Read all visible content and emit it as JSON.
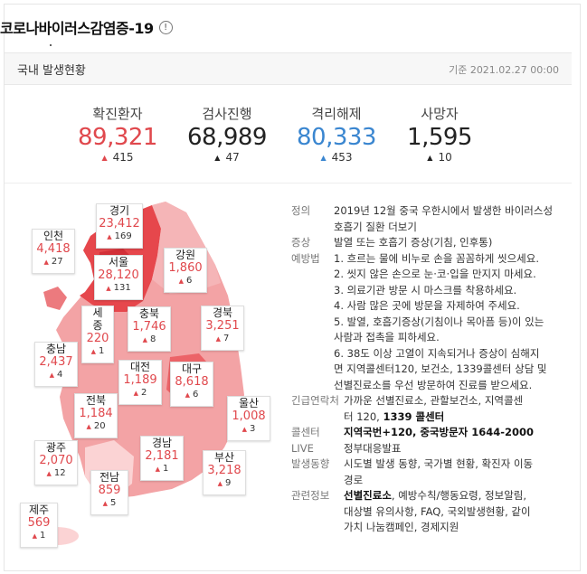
{
  "header": {
    "title": "코로나바이러스감염증-19",
    "info_icon": "info-icon"
  },
  "subheader": {
    "title": "국내 발생현황",
    "date": "기준 2021.02.27 00:00"
  },
  "stats": [
    {
      "label": "확진환자",
      "value": "89,321",
      "delta": "415",
      "color": "#e0484d"
    },
    {
      "label": "검사진행",
      "value": "68,989",
      "delta": "47",
      "color": "#222222"
    },
    {
      "label": "격리해제",
      "value": "80,333",
      "delta": "453",
      "color": "#3a86d0"
    },
    {
      "label": "사망자",
      "value": "1,595",
      "delta": "10",
      "color": "#222222"
    }
  ],
  "regions": {
    "gyeonggi": {
      "name": "경기",
      "count": "23,412",
      "delta": "169"
    },
    "incheon": {
      "name": "인천",
      "count": "4,418",
      "delta": "27"
    },
    "seoul": {
      "name": "서울",
      "count": "28,120",
      "delta": "131"
    },
    "gangwon": {
      "name": "강원",
      "count": "1,860",
      "delta": "6"
    },
    "sejong": {
      "name1": "세",
      "name2": "종",
      "count": "220",
      "delta": "1"
    },
    "chungbuk": {
      "name": "충북",
      "count": "1,746",
      "delta": "8"
    },
    "gyeongbuk": {
      "name": "경북",
      "count": "3,251",
      "delta": "7"
    },
    "chungnam": {
      "name": "충남",
      "count": "2,437",
      "delta": "4"
    },
    "daejeon": {
      "name": "대전",
      "count": "1,189",
      "delta": "2"
    },
    "daegu": {
      "name": "대구",
      "count": "8,618",
      "delta": "6"
    },
    "jeonbuk": {
      "name": "전북",
      "count": "1,184",
      "delta": "20"
    },
    "ulsan": {
      "name": "울산",
      "count": "1,008",
      "delta": "3"
    },
    "gwangju": {
      "name": "광주",
      "count": "2,070",
      "delta": "12"
    },
    "gyeongnam": {
      "name": "경남",
      "count": "2,181",
      "delta": "1"
    },
    "busan": {
      "name": "부산",
      "count": "3,218",
      "delta": "9"
    },
    "jeonnam": {
      "name": "전남",
      "count": "859",
      "delta": "5"
    },
    "jeju": {
      "name": "제주",
      "count": "569",
      "delta": "1"
    }
  },
  "info": {
    "definition_label": "정의",
    "definition_text": "2019년 12월 중국 우한시에서 발생한 바이러스성",
    "definition_text2": "호흡기 질환",
    "definition_more": "더보기",
    "symptom_label": "증상",
    "symptom_text": "발열 또는 호흡기 증상(기침, 인후통)",
    "prevention_label": "예방법",
    "prevention_lines": [
      "1. 흐르는 물에 비누로 손을 꼼꼼하게 씻으세요.",
      "2. 씻지 않은 손으로 눈·코·입을 만지지 마세요.",
      "3. 의료기관 방문 시 마스크를 착용하세요.",
      "4. 사람 많은 곳에 방문을 자제하여 주세요.",
      "5. 발열, 호흡기증상(기침이나 목아픔 등)이 있는",
      "사람과 접촉을 피하세요.",
      "6. 38도 이상 고열이 지속되거나 증상이 심해지",
      "면 지역콜센터120, 보건소, 1339콜센터 상담 및",
      "선별진료소를 우선 방문하여 진료를 받으세요."
    ],
    "emergency_label": "긴급연락처",
    "emergency_text": "가까운 선별진료소, 관할보건소, 지역콜센",
    "emergency_text2a": "터 120, ",
    "emergency_text2b": "1339 콜센터",
    "callcenter_label": "콜센터",
    "callcenter_text": "지역국번+120, 중국방문자 1644-2000",
    "live_label": "LIVE",
    "live_text": "정부대응발표",
    "trend_label": "발생동향",
    "trend_text": "시도별 발생 동향, 국가별 현황, 확진자 이동",
    "trend_text2": "경로",
    "related_label": "관련정보",
    "related_text1": "선별진료소",
    "related_text2": ", 예방수칙/행동요령, 정보알림,",
    "related_text3": "대상별 유의사항, FAQ, 국외발생현황, 같이",
    "related_text4": "가치 나눔캠페인, 경제지원"
  }
}
